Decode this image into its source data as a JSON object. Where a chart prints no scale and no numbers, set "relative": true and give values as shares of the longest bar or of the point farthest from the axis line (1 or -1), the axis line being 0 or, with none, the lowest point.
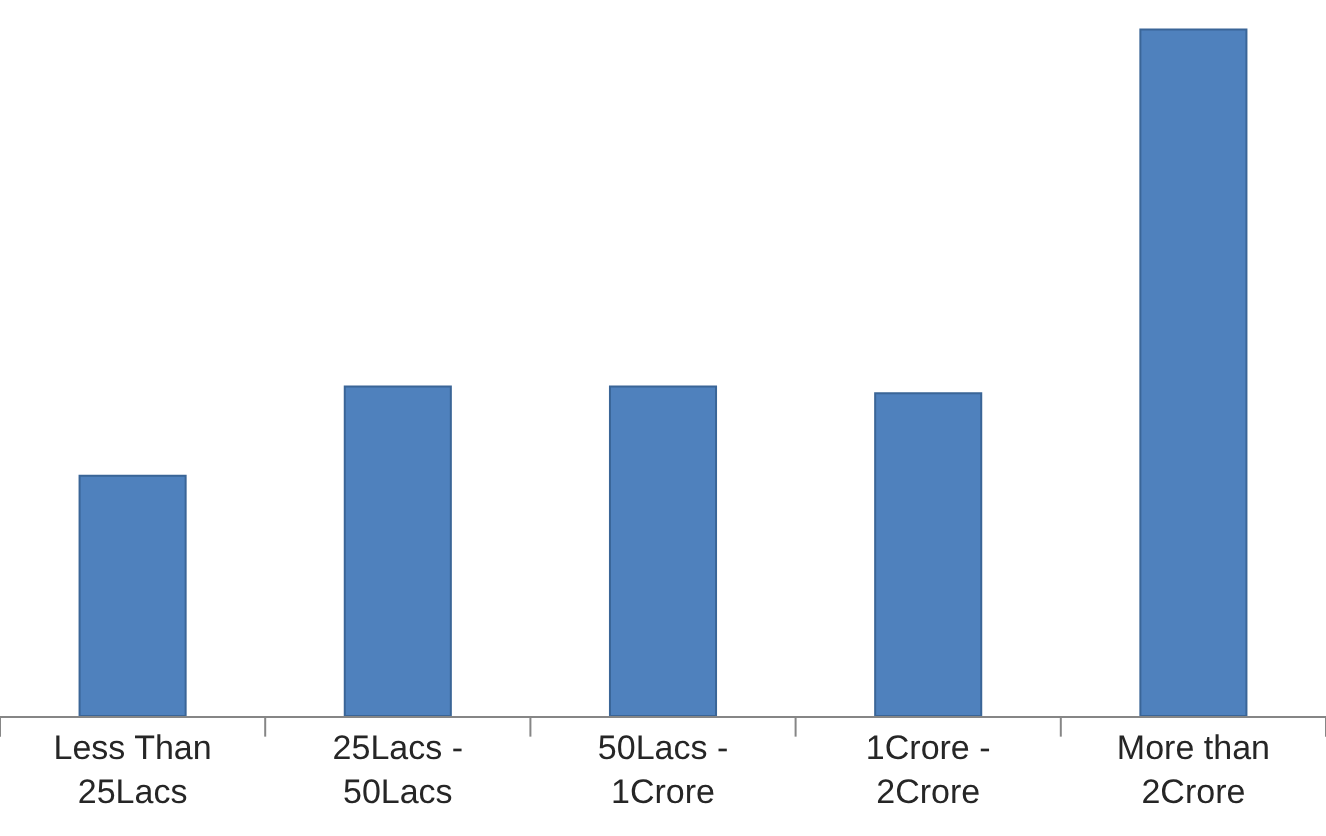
{
  "chart_data": {
    "type": "bar",
    "relative": true,
    "color": "#4f81bd",
    "categories": [
      "Less Than\n25Lacs",
      "25Lacs -\n50Lacs",
      "50Lacs -\n1Crore",
      "1Crore -\n2Crore",
      "More than\n2Crore"
    ],
    "values": [
      0.35,
      0.48,
      0.48,
      0.47,
      1
    ]
  }
}
